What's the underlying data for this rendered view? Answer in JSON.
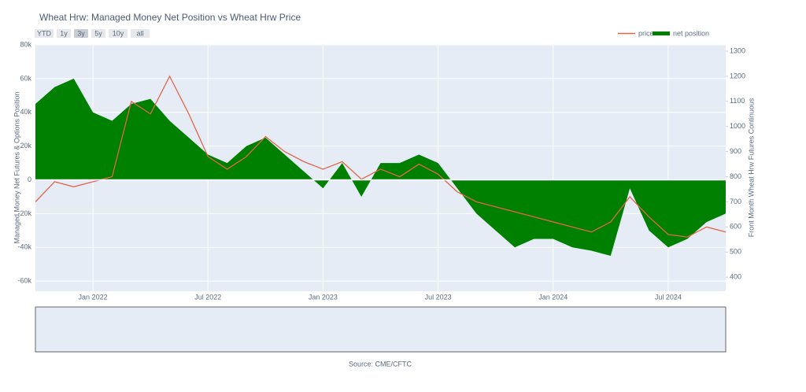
{
  "chart_data": {
    "type": "area-line",
    "title": "Wheat Hrw: Managed Money Net Position vs Wheat Hrw Price",
    "range_buttons": [
      "YTD",
      "1y",
      "3y",
      "5y",
      "10y",
      "all"
    ],
    "y_label": "Managed Money Net Futures & Options Position",
    "y2_label": "Front Month Wheat Hrw Futures Continuous",
    "source": "Source: CME/CFTC",
    "legend": "top-right",
    "x": [
      "2021-10",
      "2021-11",
      "2021-12",
      "2022-01",
      "2022-02",
      "2022-03",
      "2022-04",
      "2022-05",
      "2022-06",
      "2022-07",
      "2022-08",
      "2022-09",
      "2022-10",
      "2022-11",
      "2022-12",
      "2023-01",
      "2023-02",
      "2023-03",
      "2023-04",
      "2023-05",
      "2023-06",
      "2023-07",
      "2023-08",
      "2023-09",
      "2023-10",
      "2023-11",
      "2023-12",
      "2024-01",
      "2024-02",
      "2024-03",
      "2024-04",
      "2024-05",
      "2024-06",
      "2024-07",
      "2024-08",
      "2024-09",
      "2024-10"
    ],
    "xlim": [
      "2021-10",
      "2024-10"
    ],
    "xticks": [
      {
        "value": "2022-01",
        "label": "Jan 2022"
      },
      {
        "value": "2022-07",
        "label": "Jul 2022"
      },
      {
        "value": "2023-01",
        "label": "Jan 2023"
      },
      {
        "value": "2023-07",
        "label": "Jul 2023"
      },
      {
        "value": "2024-01",
        "label": "Jan 2024"
      },
      {
        "value": "2024-07",
        "label": "Jul 2024"
      }
    ],
    "ylim": [
      -66000,
      80000
    ],
    "yticks": [
      {
        "value": -60000,
        "label": "-60k"
      },
      {
        "value": -40000,
        "label": "-40k"
      },
      {
        "value": -20000,
        "label": "-20k"
      },
      0,
      {
        "value": 20000,
        "label": "20k"
      },
      {
        "value": 40000,
        "label": "40k"
      },
      {
        "value": 60000,
        "label": "60k"
      },
      {
        "value": 80000,
        "label": "80k"
      }
    ],
    "y2lim": [
      344,
      1325
    ],
    "y2ticks": [
      400,
      500,
      600,
      700,
      800,
      900,
      1000,
      1100,
      1200,
      1300
    ],
    "series": [
      {
        "name": "net position",
        "color": "#008000",
        "kind": "area",
        "values": [
          45000,
          55000,
          60000,
          40000,
          35000,
          45000,
          48000,
          35000,
          25000,
          15000,
          10000,
          20000,
          25000,
          15000,
          5000,
          -5000,
          10000,
          -10000,
          10000,
          10000,
          15000,
          10000,
          -5000,
          -20000,
          -30000,
          -40000,
          -35000,
          -35000,
          -40000,
          -42000,
          -45000,
          -5000,
          -30000,
          -40000,
          -35000,
          -25000,
          -20000
        ]
      },
      {
        "name": "price",
        "color": "#e0664a",
        "kind": "line",
        "axis": "y2",
        "values": [
          700,
          780,
          760,
          780,
          800,
          1100,
          1050,
          1200,
          1050,
          880,
          830,
          880,
          960,
          900,
          860,
          830,
          860,
          790,
          830,
          800,
          850,
          810,
          740,
          700,
          680,
          660,
          640,
          620,
          600,
          580,
          620,
          720,
          640,
          570,
          560,
          600,
          580
        ]
      }
    ]
  }
}
